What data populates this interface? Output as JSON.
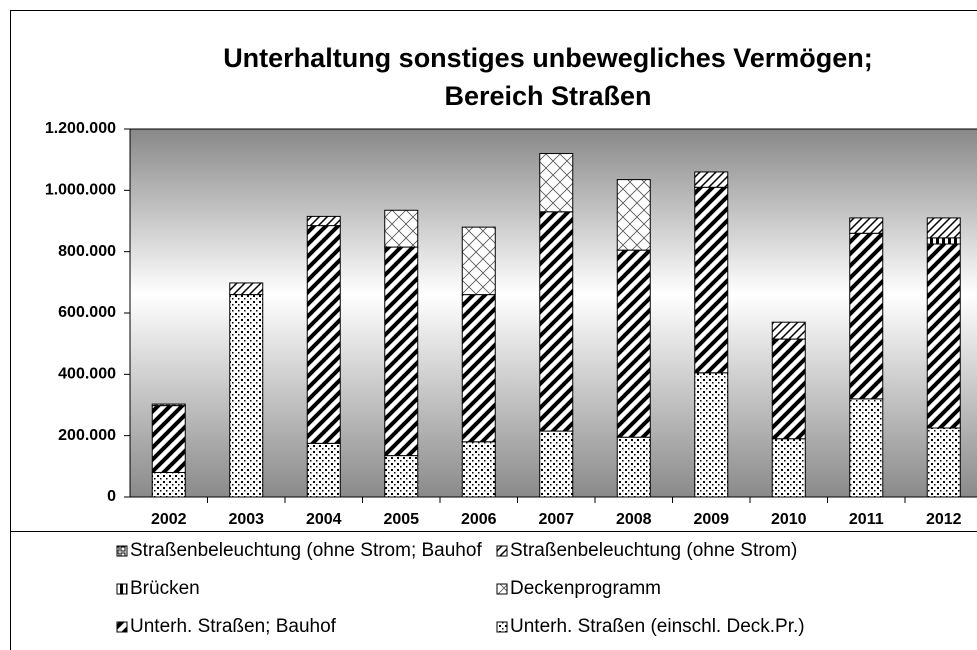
{
  "chart_data": {
    "type": "bar",
    "stacked": true,
    "title": [
      "Unterhaltung sonstiges unbewegliches Vermögen;",
      "Bereich Straßen"
    ],
    "categories": [
      "2002",
      "2003",
      "2004",
      "2005",
      "2006",
      "2007",
      "2008",
      "2009",
      "2010",
      "2011",
      "2012"
    ],
    "series": [
      {
        "name": "Straßenbeleuchtung (ohne Strom; Bauhof",
        "values": [
          5000,
          0,
          0,
          0,
          0,
          0,
          0,
          0,
          0,
          0,
          0
        ]
      },
      {
        "name": "Straßenbeleuchtung (ohne Strom)",
        "values": [
          0,
          38000,
          30000,
          0,
          0,
          0,
          0,
          50000,
          55000,
          50000,
          65000
        ]
      },
      {
        "name": "Brücken",
        "values": [
          0,
          0,
          0,
          0,
          0,
          0,
          0,
          0,
          0,
          0,
          20000
        ]
      },
      {
        "name": "Deckenprogramm",
        "values": [
          0,
          0,
          0,
          120000,
          220000,
          190000,
          230000,
          0,
          0,
          0,
          0
        ]
      },
      {
        "name": "Unterh. Straßen; Bauhof",
        "values": [
          218000,
          0,
          710000,
          680000,
          480000,
          715000,
          610000,
          605000,
          325000,
          540000,
          600000
        ]
      },
      {
        "name": "Unterh. Straßen (einschl. Deck.Pr.)",
        "values": [
          80000,
          660000,
          175000,
          135000,
          180000,
          215000,
          195000,
          405000,
          190000,
          320000,
          225000
        ]
      }
    ],
    "ylim": [
      0,
      1200000
    ],
    "yticks": [
      0,
      {
        "value": 200000,
        "label": "200.000"
      },
      {
        "value": 400000,
        "label": "400.000"
      },
      {
        "value": 600000,
        "label": "600.000"
      },
      {
        "value": 800000,
        "label": "800.000"
      },
      {
        "value": 1000000,
        "label": "1.000.000"
      },
      {
        "value": 1200000,
        "label": "1.200.000"
      }
    ],
    "legend": "bottom"
  }
}
